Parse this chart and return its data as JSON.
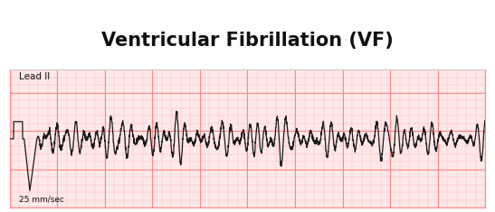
{
  "title": "Ventricular Fibrillation (VF)",
  "title_fontsize": 15,
  "title_fontweight": "bold",
  "lead_label": "Lead II",
  "speed_label": "25 mm/sec",
  "background_color": "#ffffff",
  "ecg_color": "#1a1a1a",
  "grid_major_color": "#ff8888",
  "grid_minor_color": "#ffbbbb",
  "plot_bg_color": "#ffe8e8",
  "border_color": "#dddddd",
  "ecg_linewidth": 0.9,
  "xlim": [
    0,
    10
  ],
  "ylim": [
    -1.8,
    1.8
  ],
  "figsize": [
    5.47,
    2.35
  ],
  "dpi": 100,
  "title_border_color": "#cccccc"
}
